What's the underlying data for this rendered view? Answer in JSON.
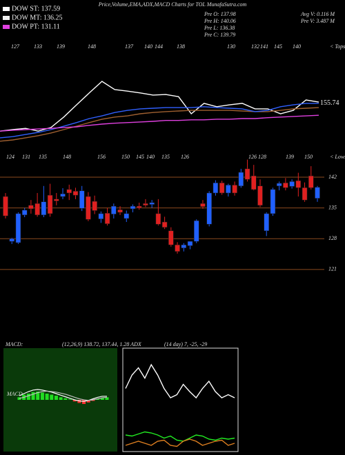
{
  "header": {
    "title": "Price,Volume,EMA,ADX,MACD Charts for TOL MunafaSutra.com",
    "legend": [
      {
        "label": "DOW ST: 137.59",
        "color": "#ffffff"
      },
      {
        "label": "DOW MT: 136.25",
        "color": "#eeeeee"
      },
      {
        "label": "DOW PT: 131.11",
        "color": "#e040e0"
      }
    ],
    "info_left": [
      "Pre O: 137.98",
      "Pre H: 140.06",
      "Pre L: 136.38",
      "Pre C: 139.79"
    ],
    "info_right": [
      "Avg V: 0.116 M",
      "Pre V: 3.487 M"
    ],
    "macd_title": "MACD:",
    "macd_params": "(12,26,9) 138.72, 137.44, 1.28 ADX",
    "adx_params": "(14 day) 7, -25, -29"
  },
  "chart_data": [
    {
      "type": "line",
      "ylim": [
        141,
        176
      ],
      "price_label": 155.74,
      "tops_label": "< Tops",
      "top_labels": [
        127,
        133,
        139,
        148,
        137,
        140,
        144,
        138,
        130,
        132,
        141,
        145,
        140
      ],
      "series": [
        {
          "color": "#ffffff",
          "values": [
            146.6,
            147.1,
            147.5,
            146.6,
            147.8,
            151.2,
            155.2,
            159.1,
            162.9,
            160.2,
            159.7,
            159.1,
            158.4,
            158.6,
            157.9,
            152.3,
            155.7,
            154.6,
            155.2,
            155.7,
            153.9,
            153.9,
            152.3,
            153.4,
            156.8,
            156.1
          ]
        },
        {
          "color": "#a06030",
          "values": [
            143.3,
            143.7,
            144.4,
            145.1,
            146.0,
            147.1,
            148.2,
            149.4,
            150.5,
            151.2,
            151.6,
            152.3,
            152.7,
            153.0,
            153.2,
            153.4,
            153.4,
            153.4,
            153.4,
            153.2,
            153.0,
            153.0,
            153.4,
            153.9,
            154.1,
            154.3
          ]
        },
        {
          "color": "#3060ff",
          "values": [
            144.4,
            144.8,
            145.5,
            146.2,
            147.1,
            148.2,
            149.4,
            150.7,
            151.6,
            152.7,
            153.4,
            153.9,
            154.1,
            154.3,
            154.3,
            154.3,
            154.6,
            154.3,
            154.1,
            153.9,
            153.0,
            153.4,
            154.6,
            155.2,
            155.7,
            155.7
          ]
        },
        {
          "color": "#e040e0",
          "values": [
            146.6,
            146.9,
            147.1,
            147.3,
            147.5,
            147.8,
            148.0,
            148.5,
            148.9,
            149.2,
            149.4,
            149.6,
            149.8,
            150.1,
            150.1,
            150.3,
            150.3,
            150.5,
            150.5,
            150.7,
            150.7,
            151.0,
            151.2,
            151.4,
            151.6,
            151.8
          ]
        }
      ]
    },
    {
      "type": "candlestick",
      "ylim": [
        118,
        150
      ],
      "yticks": [
        142,
        135,
        128,
        121
      ],
      "grid": true,
      "lows_label": "< Lows",
      "low_labels": [
        124,
        131,
        135,
        148,
        156,
        150,
        145,
        140,
        135,
        126,
        126,
        128,
        139,
        150
      ],
      "up_color": "#2060ff",
      "down_color": "#e02020",
      "open": [
        137.6,
        127.4,
        127.1,
        133.4,
        135.6,
        136.0,
        133.4,
        137.9,
        137.0,
        137.6,
        139.2,
        138.8,
        134.9,
        137.6,
        136.5,
        132.5,
        133.8,
        133.6,
        134.6,
        132.6,
        134.8,
        135.4,
        136.0,
        135.8,
        133.7,
        131.8,
        129.8,
        126.6,
        125.9,
        126.4,
        127.4,
        136.0,
        131.3,
        138.4,
        140.7,
        138.4,
        140.2,
        140.0,
        143.9,
        142.3,
        140.0,
        129.8,
        133.7,
        140.0,
        140.7,
        139.9,
        141.2,
        139.6,
        142.3,
        137.2
      ],
      "high": [
        138.4,
        128.2,
        134.0,
        135.0,
        136.8,
        138.4,
        140.0,
        140.5,
        138.4,
        139.5,
        140.3,
        139.6,
        140.0,
        138.6,
        137.8,
        134.2,
        135.0,
        136.0,
        135.4,
        134.4,
        135.8,
        136.2,
        137.0,
        136.8,
        137.0,
        133.0,
        130.6,
        127.2,
        127.0,
        127.4,
        132.4,
        136.8,
        138.8,
        141.3,
        141.2,
        140.5,
        141.0,
        143.9,
        146.0,
        144.8,
        141.5,
        134.0,
        139.6,
        141.0,
        141.8,
        141.5,
        143.0,
        140.8,
        144.5,
        140.0
      ],
      "low": [
        132.6,
        126.8,
        126.8,
        132.9,
        133.7,
        133.0,
        132.9,
        133.0,
        135.6,
        137.0,
        136.8,
        137.0,
        134.3,
        132.0,
        133.6,
        131.6,
        131.0,
        132.6,
        133.4,
        131.8,
        134.0,
        134.6,
        135.2,
        135.0,
        131.0,
        130.2,
        126.2,
        124.6,
        125.1,
        125.6,
        127.0,
        134.8,
        130.8,
        137.8,
        138.0,
        137.6,
        137.8,
        139.6,
        141.0,
        139.0,
        135.2,
        128.6,
        133.2,
        139.0,
        139.0,
        139.4,
        137.6,
        136.4,
        139.2,
        136.4
      ],
      "close": [
        133.2,
        128.0,
        133.7,
        134.5,
        134.8,
        133.4,
        136.4,
        133.7,
        136.6,
        138.2,
        138.4,
        137.9,
        138.9,
        132.4,
        134.4,
        133.7,
        131.4,
        135.4,
        134.0,
        133.7,
        135.4,
        135.0,
        135.6,
        136.2,
        131.3,
        130.6,
        126.6,
        125.1,
        126.6,
        127.4,
        132.1,
        135.3,
        138.4,
        140.7,
        138.4,
        140.2,
        138.4,
        143.1,
        141.5,
        139.2,
        135.6,
        133.7,
        139.2,
        140.6,
        139.6,
        141.0,
        139.6,
        136.8,
        139.6,
        139.7
      ]
    },
    {
      "type": "macd",
      "ylim": [
        -10,
        10
      ],
      "label": "MACD",
      "series": [
        {
          "type": "bar",
          "color": "#22dd22",
          "negative_color": "#ff3030",
          "values": [
            0.5,
            1,
            1.2,
            1.5,
            1.6,
            1.4,
            1.2,
            1,
            0.8,
            0.5,
            0.3,
            0.1,
            -0.3,
            -0.6,
            -0.8,
            -0.5,
            -0.2,
            0.2,
            0.4,
            0.5
          ]
        },
        {
          "type": "line",
          "color": "#ffffff",
          "values": [
            0.8,
            1.2,
            1.6,
            1.9,
            2.0,
            1.9,
            1.7,
            1.5,
            1.2,
            0.9,
            0.6,
            0.3,
            0.0,
            -0.2,
            -0.3,
            -0.1,
            0.2,
            0.5,
            0.7,
            0.7
          ]
        },
        {
          "type": "line",
          "color": "#bbbbbb",
          "values": [
            0.3,
            0.5,
            0.8,
            1.1,
            1.4,
            1.6,
            1.7,
            1.6,
            1.5,
            1.3,
            1.1,
            0.8,
            0.5,
            0.2,
            0.0,
            -0.1,
            0.0,
            0.2,
            0.4,
            0.5
          ]
        }
      ]
    },
    {
      "type": "line",
      "ylim": [
        0,
        100
      ],
      "series": [
        {
          "color": "#ffffff",
          "values": [
            61,
            74,
            81,
            71,
            84,
            74,
            61,
            52,
            55,
            65,
            58,
            52,
            61,
            68,
            58,
            52,
            55,
            52
          ]
        },
        {
          "color": "#22ee22",
          "values": [
            16,
            15,
            17,
            19,
            18,
            16,
            13,
            15,
            11,
            10,
            13,
            16,
            15,
            12,
            11,
            13,
            12,
            13
          ]
        },
        {
          "color": "#e08020",
          "values": [
            6,
            8,
            10,
            8,
            6,
            10,
            11,
            6,
            5,
            10,
            12,
            10,
            6,
            8,
            10,
            11,
            6,
            8
          ]
        }
      ]
    }
  ]
}
